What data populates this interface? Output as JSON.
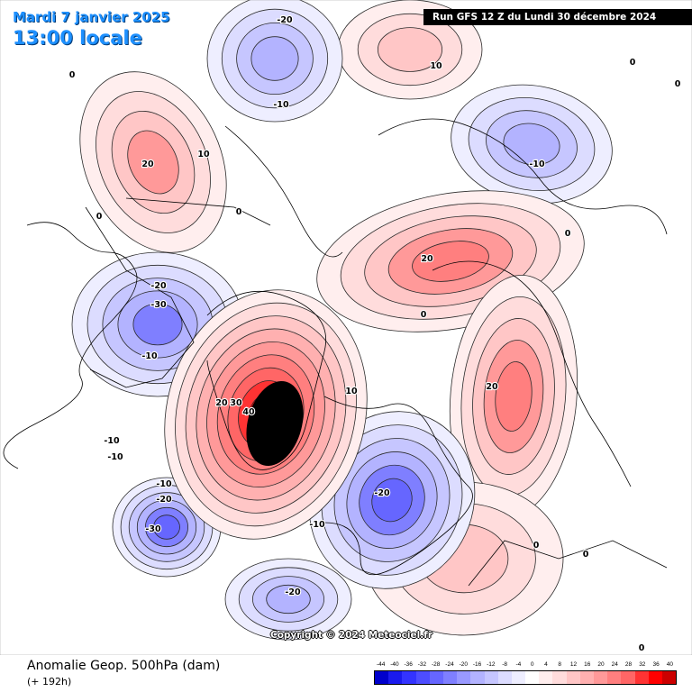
{
  "header": {
    "date": "Mardi 7 janvier 2025",
    "time": "13:00 locale",
    "run": "Run GFS 12 Z du Lundi 30 décembre 2024"
  },
  "copyright": "Copyright © 2024 Meteociel.fr",
  "footer": {
    "title": "Anomalie Geop. 500hPa (dam)",
    "subtitle": "(+ 192h)"
  },
  "legend": {
    "ticks": [
      "-44",
      "-40",
      "-36",
      "-32",
      "-28",
      "-24",
      "-20",
      "-16",
      "-12",
      "-8",
      "-4",
      "0",
      "4",
      "8",
      "12",
      "16",
      "20",
      "24",
      "28",
      "32",
      "36",
      "40"
    ],
    "colors": [
      "#0000cc",
      "#1a1aee",
      "#3333ff",
      "#4d4dff",
      "#6666ff",
      "#7f7fff",
      "#9999ff",
      "#b3b3ff",
      "#c6c6ff",
      "#dcdcff",
      "#eeeeff",
      "#ffffff",
      "#ffeeee",
      "#ffdcdc",
      "#ffc6c6",
      "#ffb0b0",
      "#ff9999",
      "#ff7f7f",
      "#ff6666",
      "#ff3333",
      "#ff0000",
      "#cc0000"
    ]
  },
  "contour_labels": [
    "0",
    "0",
    "0",
    "0",
    "0",
    "0",
    "0",
    "0",
    "0",
    "0",
    "10",
    "10",
    "10",
    "20",
    "20",
    "20",
    "20",
    "30",
    "40",
    "-10",
    "-10",
    "-10",
    "-10",
    "-10",
    "-10",
    "-10",
    "-20",
    "-20",
    "-20",
    "-20",
    "-20",
    "-30",
    "-30"
  ],
  "map": {
    "background": "#ffffff",
    "core_positive": "#000000"
  }
}
